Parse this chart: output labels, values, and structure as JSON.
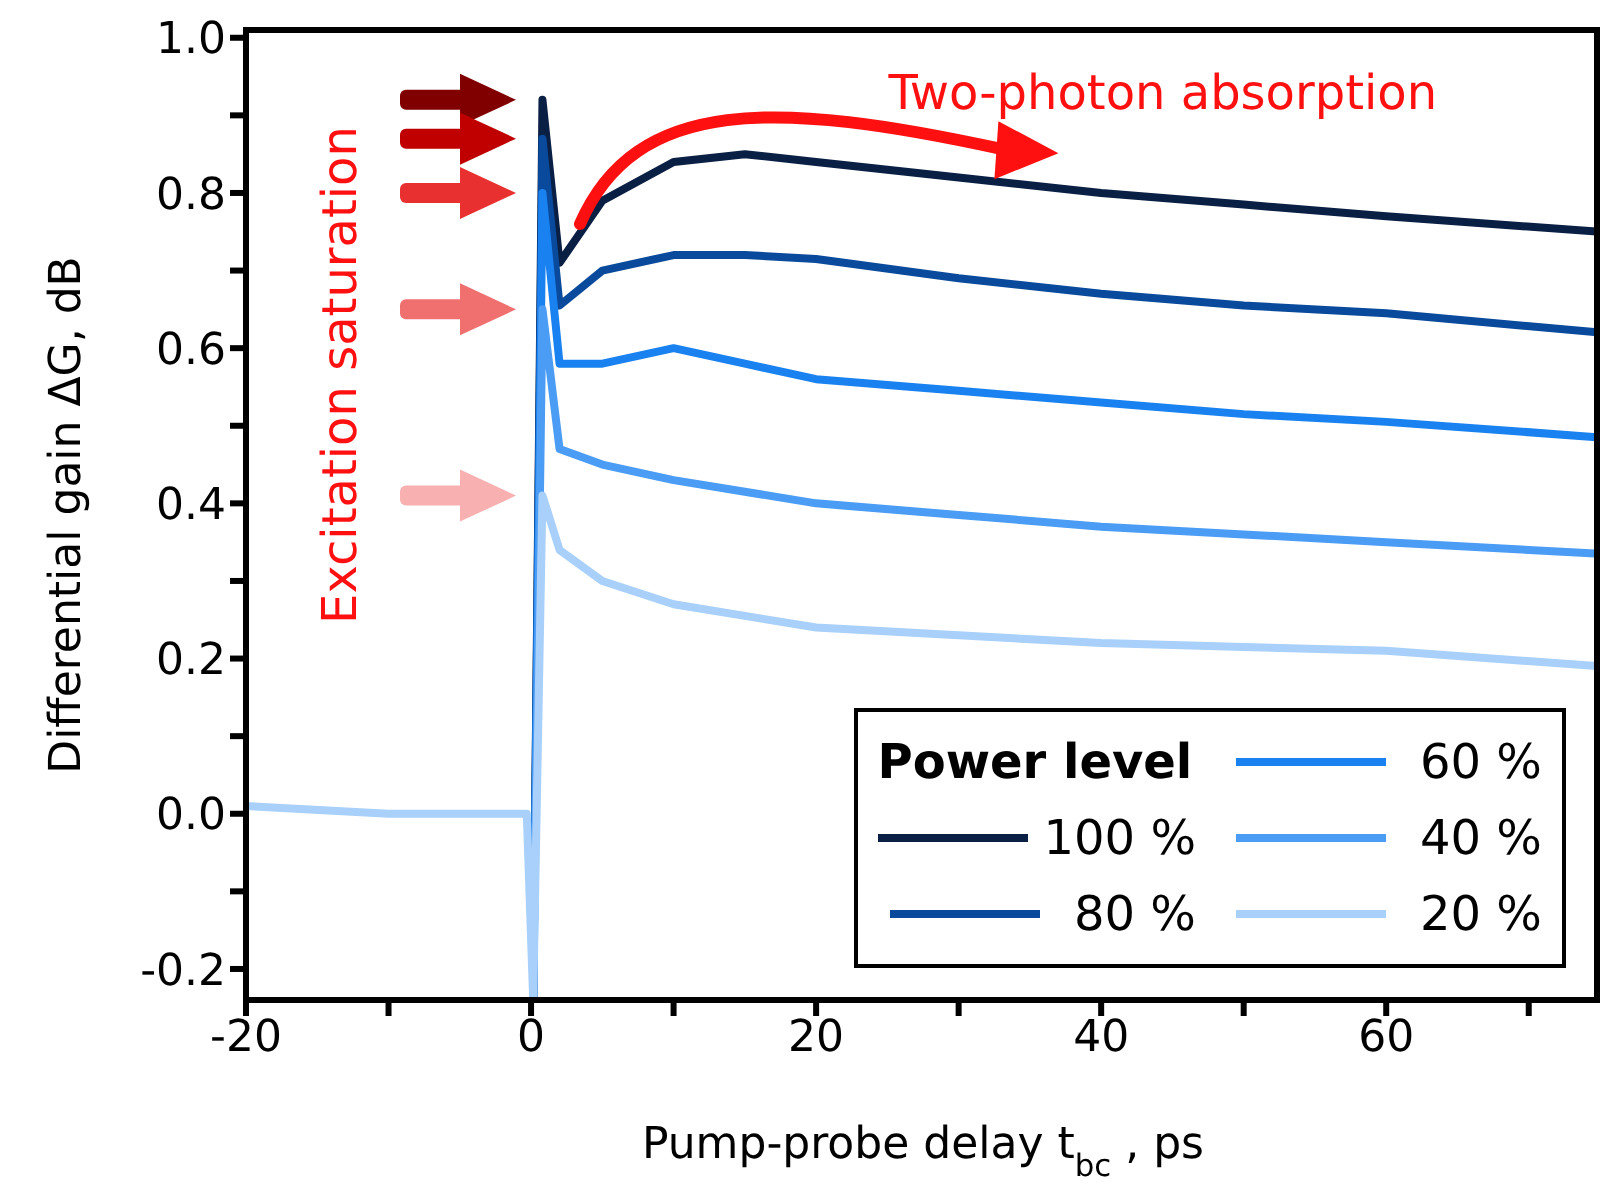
{
  "chart_data": {
    "type": "line",
    "xlabel": "Pump-probe delay t$_{bc}$, ps",
    "ylabel": "Differential gain ΔG, dB",
    "legend_title": "Power level",
    "legend": "bottom right",
    "annotations": [
      "Excitation saturation",
      {
        "text": "Two-photon absorption",
        "x": 37,
        "y": 0.81
      }
    ],
    "xlim": [
      -20,
      75
    ],
    "xticks": [
      -20,
      {
        "value": -10,
        "label": null
      },
      0,
      {
        "value": 10,
        "label": null
      },
      20,
      {
        "value": 30,
        "label": null
      },
      40,
      {
        "value": 50,
        "label": null
      },
      60,
      {
        "value": 70,
        "label": null
      }
    ],
    "ylim": [
      -0.24,
      1.01
    ],
    "yticks": [
      {
        "value": -0.2,
        "label": "-0.2"
      },
      {
        "value": -0.1,
        "label": null
      },
      {
        "value": 0,
        "label": "0.0"
      },
      {
        "value": 0.1,
        "label": null
      },
      {
        "value": 0.2,
        "label": "0.2"
      },
      {
        "value": 0.3,
        "label": null
      },
      {
        "value": 0.4,
        "label": "0.4"
      },
      {
        "value": 0.5,
        "label": null
      },
      {
        "value": 0.6,
        "label": "0.6"
      },
      {
        "value": 0.7,
        "label": null
      },
      {
        "value": 0.8,
        "label": "0.8"
      },
      {
        "value": 0.9,
        "label": null
      },
      {
        "value": 1.0,
        "label": "1.0"
      }
    ],
    "grid": false,
    "marker": "none",
    "line_style": "solid",
    "x": [
      -20,
      -10,
      -0.3,
      0.15,
      0.8,
      2,
      5,
      10,
      15,
      20,
      30,
      40,
      50,
      60,
      75
    ],
    "series": [
      {
        "name": "100 %",
        "color": "#0a1f44",
        "values": [
          null,
          null,
          null,
          -0.24,
          0.92,
          0.71,
          0.79,
          0.84,
          0.85,
          0.84,
          0.82,
          0.8,
          0.785,
          0.77,
          0.75
        ]
      },
      {
        "name": "80 %",
        "color": "#0a4a9c",
        "values": [
          null,
          null,
          null,
          -0.24,
          0.87,
          0.655,
          0.7,
          0.72,
          0.72,
          0.715,
          0.69,
          0.67,
          0.655,
          0.645,
          0.62
        ]
      },
      {
        "name": "60 %",
        "color": "#1a82f0",
        "values": [
          null,
          null,
          null,
          -0.24,
          0.8,
          0.58,
          0.58,
          0.6,
          0.58,
          0.56,
          0.545,
          0.53,
          0.515,
          0.505,
          0.485
        ]
      },
      {
        "name": "40 %",
        "color": "#4a9cf5",
        "values": [
          null,
          null,
          null,
          -0.24,
          0.65,
          0.47,
          0.45,
          0.43,
          0.415,
          0.4,
          0.385,
          0.37,
          0.36,
          0.35,
          0.335
        ]
      },
      {
        "name": "20 %",
        "color": "#a8d0fa",
        "values": [
          0.01,
          0.0,
          0.0,
          -0.24,
          0.41,
          0.34,
          0.3,
          0.27,
          0.255,
          0.24,
          0.23,
          0.22,
          0.215,
          0.21,
          0.19
        ]
      }
    ]
  }
}
